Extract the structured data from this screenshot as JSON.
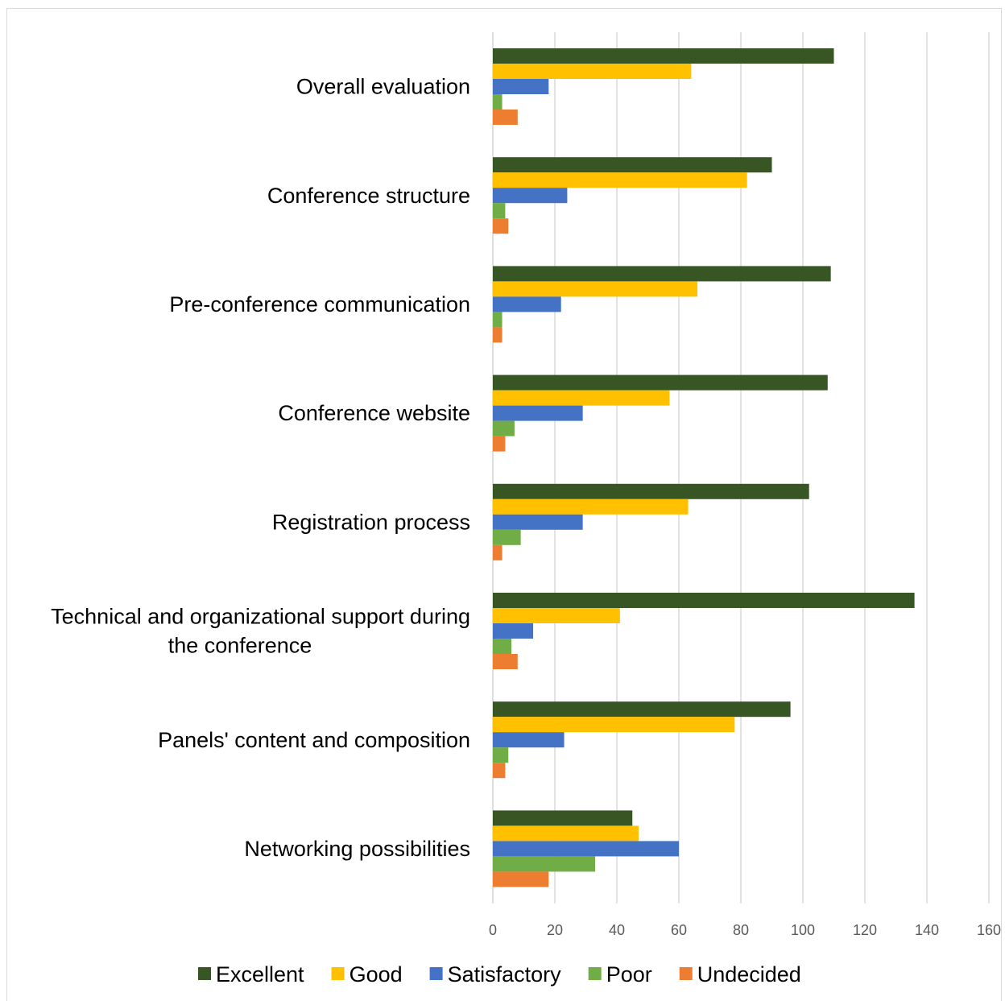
{
  "chart_data": {
    "type": "bar",
    "orientation": "horizontal",
    "categories": [
      "Overall evaluation",
      "Conference structure",
      "Pre-conference communication",
      "Conference website",
      "Registration process",
      "Technical and organizational support during the conference",
      "Panels' content and composition",
      "Networking possibilities"
    ],
    "category_lines": [
      [
        "Overall evaluation"
      ],
      [
        "Conference structure"
      ],
      [
        "Pre-conference communication"
      ],
      [
        "Conference website"
      ],
      [
        "Registration process"
      ],
      [
        "Technical and organizational support during",
        "the conference"
      ],
      [
        "Panels' content and composition"
      ],
      [
        "Networking possibilities"
      ]
    ],
    "series": [
      {
        "name": "Excellent",
        "color": "#375623",
        "values": [
          110,
          90,
          109,
          108,
          102,
          136,
          96,
          45
        ]
      },
      {
        "name": "Good",
        "color": "#ffc000",
        "values": [
          64,
          82,
          66,
          57,
          63,
          41,
          78,
          47
        ]
      },
      {
        "name": "Satisfactory",
        "color": "#4472c4",
        "values": [
          18,
          24,
          22,
          29,
          29,
          13,
          23,
          60
        ]
      },
      {
        "name": "Poor",
        "color": "#70ad47",
        "values": [
          3,
          4,
          3,
          7,
          9,
          6,
          5,
          33
        ]
      },
      {
        "name": "Undecided",
        "color": "#ed7d31",
        "values": [
          8,
          5,
          3,
          4,
          3,
          8,
          4,
          18
        ]
      }
    ],
    "xlim": [
      0,
      160
    ],
    "xticks": [
      0,
      20,
      40,
      60,
      80,
      100,
      120,
      140,
      160
    ],
    "grid": true,
    "legend_position": "bottom",
    "title": "",
    "xlabel": "",
    "ylabel": ""
  }
}
